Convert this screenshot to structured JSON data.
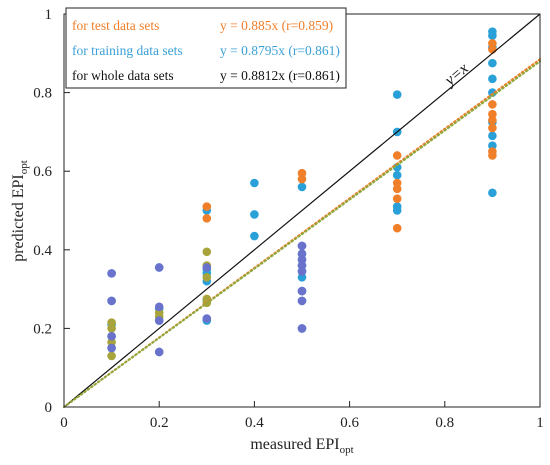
{
  "chart_data": {
    "type": "scatter",
    "xlabel": "measured EPI",
    "xlabel_sub": "opt",
    "ylabel": "predicted EPI",
    "ylabel_sub": "opt",
    "xlim": [
      0,
      1
    ],
    "ylim": [
      0,
      1
    ],
    "xticks": [
      0,
      0.2,
      0.4,
      0.6,
      0.8,
      1
    ],
    "xtick_labels": [
      "0",
      "0.2",
      "0.4",
      "0.6",
      "0.8",
      "1"
    ],
    "yticks": [
      0,
      0.2,
      0.4,
      0.6,
      0.8,
      1
    ],
    "ytick_labels": [
      "0",
      "0.2",
      "0.4",
      "0.6",
      "0.8",
      "1"
    ],
    "grid": false,
    "legend_position": "top-left",
    "diagonal_label": "y=x",
    "legend": [
      {
        "name": "for test data sets",
        "equation": "y = 0.885x  (r=0.859)",
        "color": "#f07f2a"
      },
      {
        "name": "for training data sets",
        "equation": "y = 0.8795x  (r=0.861)",
        "color": "#3aa0d6"
      },
      {
        "name": "for whole data sets",
        "equation": "y = 0.8812x  (r=0.861)",
        "color": "#111111"
      }
    ],
    "lines": [
      {
        "kind": "identity",
        "slope": 1,
        "color": "#111111",
        "style": "solid"
      },
      {
        "kind": "fit-test",
        "slope": 0.885,
        "color": "#f07f2a",
        "style": "dotted"
      },
      {
        "kind": "fit-training",
        "slope": 0.8795,
        "color": "#8ca83a",
        "style": "dotted"
      }
    ],
    "series": [
      {
        "name": "training",
        "color": "#2aa0d8",
        "points": [
          [
            0.1,
            0.34
          ],
          [
            0.1,
            0.27
          ],
          [
            0.1,
            0.21
          ],
          [
            0.1,
            0.18
          ],
          [
            0.1,
            0.15
          ],
          [
            0.2,
            0.355
          ],
          [
            0.2,
            0.25
          ],
          [
            0.2,
            0.22
          ],
          [
            0.2,
            0.14
          ],
          [
            0.3,
            0.5
          ],
          [
            0.3,
            0.35
          ],
          [
            0.3,
            0.34
          ],
          [
            0.3,
            0.32
          ],
          [
            0.3,
            0.27
          ],
          [
            0.3,
            0.22
          ],
          [
            0.4,
            0.57
          ],
          [
            0.4,
            0.49
          ],
          [
            0.4,
            0.435
          ],
          [
            0.5,
            0.56
          ],
          [
            0.5,
            0.41
          ],
          [
            0.5,
            0.39
          ],
          [
            0.5,
            0.375
          ],
          [
            0.5,
            0.36
          ],
          [
            0.5,
            0.345
          ],
          [
            0.5,
            0.33
          ],
          [
            0.5,
            0.295
          ],
          [
            0.5,
            0.27
          ],
          [
            0.5,
            0.2
          ],
          [
            0.7,
            0.795
          ],
          [
            0.7,
            0.7
          ],
          [
            0.7,
            0.61
          ],
          [
            0.7,
            0.59
          ],
          [
            0.7,
            0.51
          ],
          [
            0.7,
            0.5
          ],
          [
            0.9,
            0.955
          ],
          [
            0.9,
            0.945
          ],
          [
            0.9,
            0.915
          ],
          [
            0.9,
            0.875
          ],
          [
            0.9,
            0.835
          ],
          [
            0.9,
            0.8
          ],
          [
            0.9,
            0.725
          ],
          [
            0.9,
            0.69
          ],
          [
            0.9,
            0.665
          ],
          [
            0.9,
            0.545
          ]
        ]
      },
      {
        "name": "test",
        "color": "#f07f2a",
        "points": [
          [
            0.3,
            0.51
          ],
          [
            0.3,
            0.48
          ],
          [
            0.5,
            0.595
          ],
          [
            0.5,
            0.58
          ],
          [
            0.7,
            0.64
          ],
          [
            0.7,
            0.57
          ],
          [
            0.7,
            0.555
          ],
          [
            0.7,
            0.53
          ],
          [
            0.7,
            0.455
          ],
          [
            0.9,
            0.925
          ],
          [
            0.9,
            0.91
          ],
          [
            0.9,
            0.77
          ],
          [
            0.9,
            0.745
          ],
          [
            0.9,
            0.73
          ],
          [
            0.9,
            0.71
          ],
          [
            0.9,
            0.65
          ],
          [
            0.9,
            0.64
          ]
        ]
      },
      {
        "name": "overlap",
        "color": "#a8a33a",
        "points": [
          [
            0.1,
            0.215
          ],
          [
            0.1,
            0.2
          ],
          [
            0.1,
            0.165
          ],
          [
            0.1,
            0.13
          ],
          [
            0.2,
            0.24
          ],
          [
            0.2,
            0.23
          ],
          [
            0.3,
            0.395
          ],
          [
            0.3,
            0.36
          ],
          [
            0.3,
            0.33
          ],
          [
            0.3,
            0.275
          ],
          [
            0.3,
            0.265
          ]
        ]
      },
      {
        "name": "blend",
        "color": "#6a72cc",
        "points": [
          [
            0.1,
            0.34
          ],
          [
            0.1,
            0.27
          ],
          [
            0.1,
            0.18
          ],
          [
            0.1,
            0.15
          ],
          [
            0.2,
            0.355
          ],
          [
            0.2,
            0.255
          ],
          [
            0.2,
            0.22
          ],
          [
            0.2,
            0.14
          ],
          [
            0.3,
            0.355
          ],
          [
            0.3,
            0.225
          ],
          [
            0.5,
            0.41
          ],
          [
            0.5,
            0.39
          ],
          [
            0.5,
            0.375
          ],
          [
            0.5,
            0.36
          ],
          [
            0.5,
            0.345
          ],
          [
            0.5,
            0.295
          ],
          [
            0.5,
            0.27
          ],
          [
            0.5,
            0.2
          ]
        ]
      }
    ]
  }
}
